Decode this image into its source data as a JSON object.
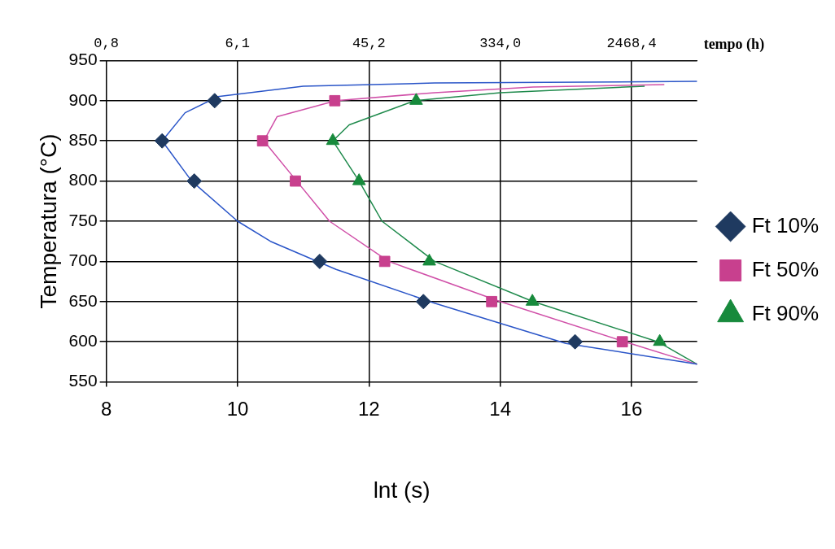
{
  "chart_data": {
    "type": "scatter",
    "xlabel": "lnt (s)",
    "ylabel": "Temperatura (°C)",
    "x2label": "tempo (h)",
    "xlim": [
      8,
      17
    ],
    "xticks": [
      8,
      10,
      12,
      14,
      16
    ],
    "ylim": [
      550,
      950
    ],
    "yticks": [
      550,
      600,
      650,
      700,
      750,
      800,
      850,
      900,
      950
    ],
    "x2lim": [
      0.828,
      6706
    ],
    "log": "x2",
    "x2ticks": [
      {
        "value": 0.828,
        "label": "0,8"
      },
      {
        "value": 6.1,
        "label": "6,1"
      },
      {
        "value": 45.2,
        "label": "45,2"
      },
      {
        "value": 334.0,
        "label": "334,0"
      },
      {
        "value": 2468.4,
        "label": "2468,4"
      }
    ],
    "grid": true,
    "legend": "right",
    "series": [
      {
        "name": "Ft 10%",
        "color": "#1f3a60",
        "marker": "diamond",
        "x": [
          9.65,
          8.85,
          9.34,
          11.25,
          12.83,
          15.14
        ],
        "values": [
          900,
          850,
          800,
          700,
          650,
          600
        ]
      },
      {
        "name": "Ft 50%",
        "color": "#c8408e",
        "marker": "square",
        "x": [
          11.48,
          10.38,
          10.88,
          12.24,
          13.87,
          15.86
        ],
        "values": [
          900,
          850,
          800,
          700,
          650,
          600
        ]
      },
      {
        "name": "Ft 90%",
        "color": "#178a3c",
        "marker": "triangle",
        "x": [
          12.72,
          11.45,
          11.85,
          12.92,
          14.49,
          16.43
        ],
        "values": [
          900,
          850,
          800,
          700,
          650,
          600
        ]
      },
      {
        "type": "line",
        "color": "#2a55c8",
        "marker": "none",
        "x": [
          17,
          15,
          13,
          11.5,
          10.5,
          10,
          9.3,
          8.85,
          9.2,
          9.7,
          11,
          13,
          17
        ],
        "values": [
          572,
          598,
          648,
          690,
          725,
          750,
          800,
          850,
          885,
          905,
          918,
          922,
          924
        ]
      },
      {
        "type": "line",
        "color": "#d050a8",
        "marker": "none",
        "x": [
          17,
          15.9,
          14,
          12.3,
          11.4,
          10.9,
          10.4,
          10.6,
          11.5,
          13,
          14.5,
          16.5
        ],
        "values": [
          572,
          600,
          650,
          700,
          750,
          800,
          850,
          880,
          900,
          910,
          917,
          920
        ]
      },
      {
        "type": "line",
        "color": "#1f8a4c",
        "marker": "none",
        "x": [
          17,
          16.4,
          14.5,
          13,
          12.2,
          11.85,
          11.45,
          11.7,
          12.7,
          14,
          16.2
        ],
        "values": [
          572,
          600,
          650,
          700,
          750,
          800,
          850,
          870,
          900,
          910,
          918
        ]
      }
    ]
  }
}
